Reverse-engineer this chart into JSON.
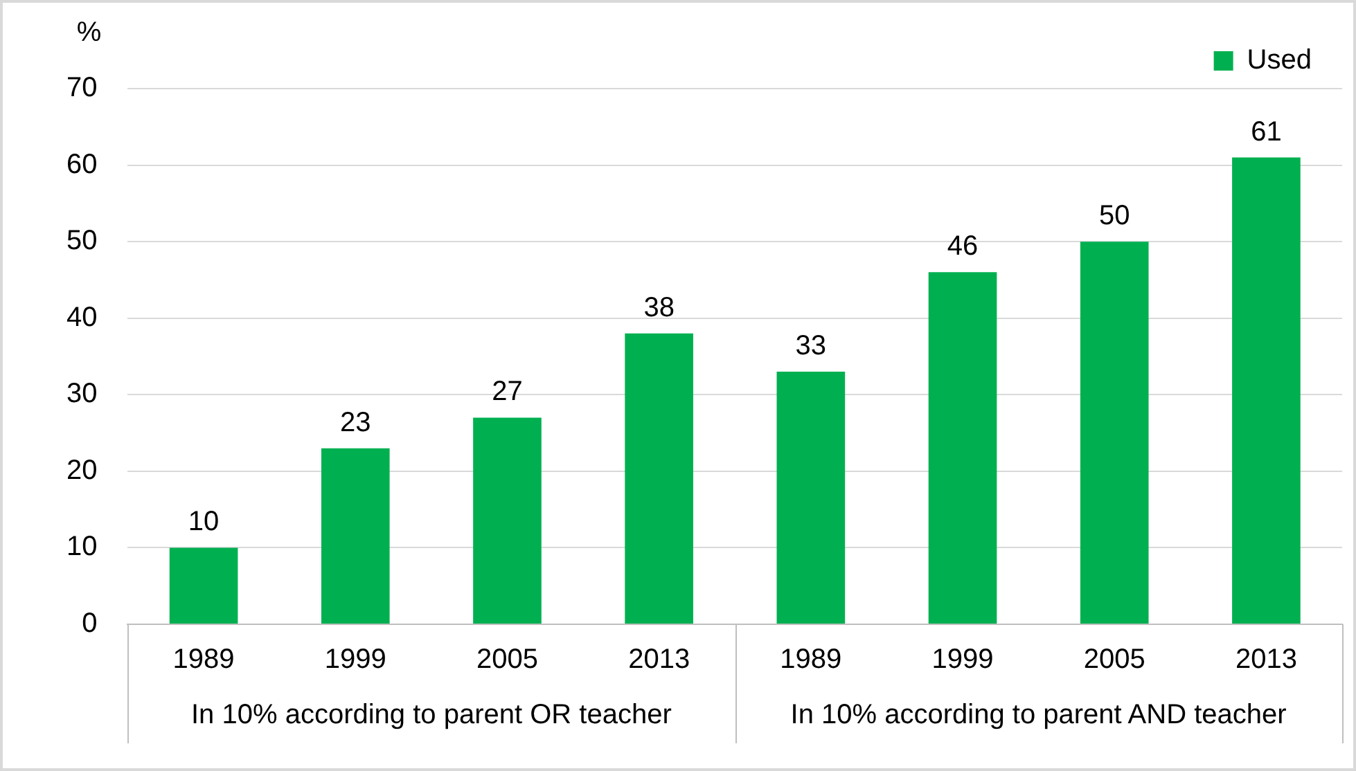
{
  "chart_data": {
    "type": "bar",
    "ylabel": "%",
    "categories": [
      "1989",
      "1999",
      "2005",
      "2013",
      "1989",
      "1999",
      "2005",
      "2013"
    ],
    "series": [
      {
        "name": "Used",
        "color": "#00b050",
        "values": [
          10,
          23,
          27,
          38,
          33,
          46,
          50,
          61
        ]
      }
    ],
    "ylim": [
      0,
      70
    ],
    "yticks": [
      0,
      10,
      20,
      30,
      40,
      50,
      60,
      70
    ],
    "grid": "y",
    "legend": "top right",
    "data_labels": true,
    "annotations": [
      "In 10% according to parent OR teacher",
      "In 10% according to parent AND teacher"
    ]
  }
}
